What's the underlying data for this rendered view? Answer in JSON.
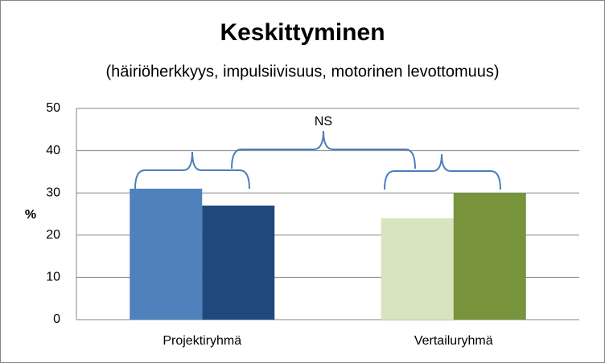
{
  "chart_data": {
    "type": "bar",
    "title": "Keskittyminen",
    "subtitle": "(häiriöherkkyys, impulsiivisuus, motorinen levottomuus)",
    "y_label": "%",
    "annotation": "NS",
    "categories": [
      "Projektiryhmä",
      "Vertailuryhmä"
    ],
    "series": [
      {
        "colors": [
          "#4f81bd",
          "#d7e4bd"
        ],
        "values": [
          31,
          24
        ]
      },
      {
        "colors": [
          "#1f497d",
          "#77933c"
        ],
        "values": [
          27,
          30
        ]
      }
    ],
    "ylim": [
      0,
      50
    ],
    "yticks": [
      0,
      10,
      20,
      30,
      40,
      50
    ],
    "grid": true
  }
}
